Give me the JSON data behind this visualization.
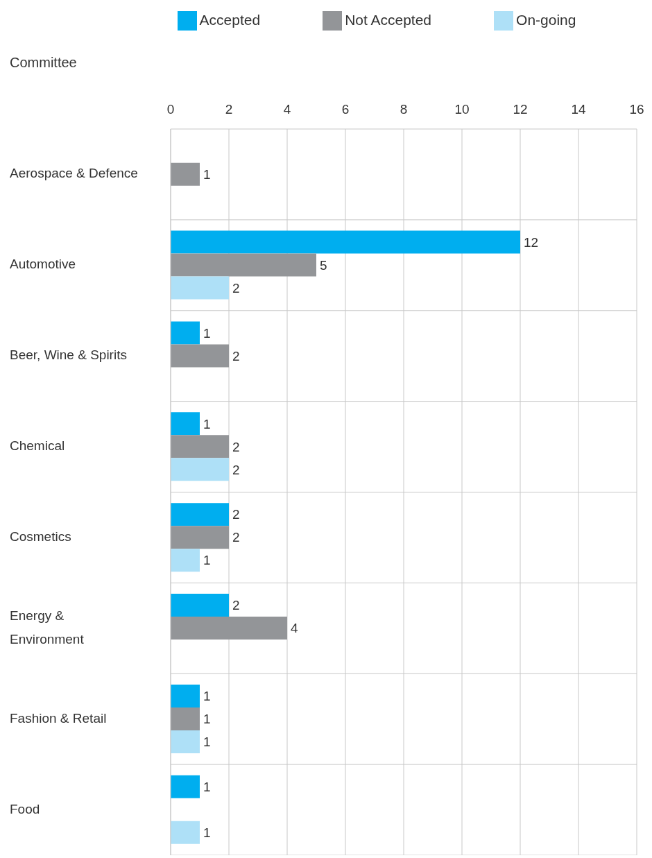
{
  "chart_data": {
    "type": "bar",
    "orientation": "horizontal",
    "ylabel": "Committee",
    "categories": [
      "Aerospace & Defence",
      "Automotive",
      "Beer, Wine & Spirits",
      "Chemical",
      "Cosmetics",
      "Energy & Environment",
      "Fashion & Retail",
      "Food"
    ],
    "series": [
      {
        "name": "Accepted",
        "color": "#00aeef",
        "values": [
          null,
          12,
          1,
          1,
          2,
          2,
          1,
          1
        ]
      },
      {
        "name": "Not Accepted",
        "color": "#939598",
        "values": [
          1,
          5,
          2,
          2,
          2,
          4,
          1,
          null
        ]
      },
      {
        "name": "On-going",
        "color": "#aee0f7",
        "values": [
          null,
          2,
          null,
          2,
          1,
          null,
          1,
          1
        ]
      }
    ],
    "xlim": [
      0,
      16
    ],
    "xticks": [
      0,
      2,
      4,
      6,
      8,
      10,
      12,
      14,
      16
    ],
    "grid": true,
    "legend": "top",
    "data_labels": true
  }
}
